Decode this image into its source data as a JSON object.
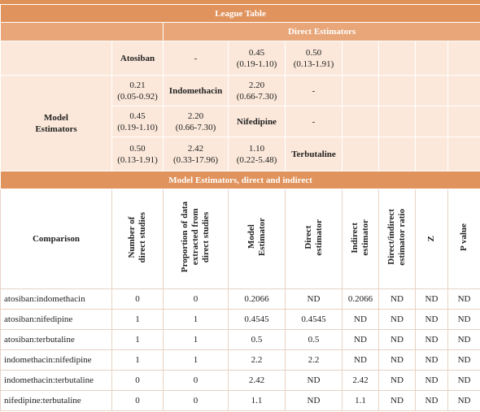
{
  "title": "League Table",
  "direct_header": "Direct Estimators",
  "model_label": [
    "Model",
    "Estimators"
  ],
  "league": [
    [
      null,
      [
        "Atosiban"
      ],
      [
        "-"
      ],
      [
        "0.45",
        "(0.19-1.10)"
      ],
      [
        "0.50",
        "(0.13-1.91)"
      ],
      null,
      null,
      null,
      null
    ],
    [
      null,
      [
        "0.21",
        "(0.05-0.92)"
      ],
      [
        "Indomethacin"
      ],
      [
        "2.20",
        "(0.66-7.30)"
      ],
      [
        "-"
      ],
      null,
      null,
      null,
      null
    ],
    [
      null,
      [
        "0.45",
        "(0.19-1.10)"
      ],
      [
        "2.20",
        "(0.66-7.30)"
      ],
      [
        "Nifedipine"
      ],
      [
        "-"
      ],
      null,
      null,
      null,
      null
    ],
    [
      null,
      [
        "0.50",
        "(0.13-1.91)"
      ],
      [
        "2.42",
        "(0.33-17.96)"
      ],
      [
        "1.10",
        "(0.22-5.48)"
      ],
      [
        "Terbutaline"
      ],
      null,
      null,
      null,
      null
    ]
  ],
  "section2_title": "Model Estimators, direct and indirect",
  "columns": [
    [
      "Comparison"
    ],
    [
      "Number of",
      "direct studies"
    ],
    [
      "Proportion of data",
      "extracted from",
      "direct studies"
    ],
    [
      "Model",
      "Estimator"
    ],
    [
      "Direct",
      "estimator"
    ],
    [
      "Indirect",
      "estimator"
    ],
    [
      "Direct/indirect",
      "estimator ratio"
    ],
    [
      "Z"
    ],
    [
      "P value"
    ]
  ],
  "rows": [
    [
      "atosiban:indomethacin",
      0,
      0,
      0.2066,
      "ND",
      0.2066,
      "ND",
      "ND",
      "ND"
    ],
    [
      "atosiban:nifedipine",
      1,
      1,
      0.4545,
      0.4545,
      "ND",
      "ND",
      "ND",
      "ND"
    ],
    [
      "atosiban:terbutaline",
      1,
      1,
      0.5,
      0.5,
      "ND",
      "ND",
      "ND",
      "ND"
    ],
    [
      "indomethacin:nifedipine",
      1,
      1,
      2.2,
      2.2,
      "ND",
      "ND",
      "ND",
      "ND"
    ],
    [
      "indomethacin:terbutaline",
      0,
      0,
      2.42,
      "ND",
      2.42,
      "ND",
      "ND",
      "ND"
    ],
    [
      "nifedipine:terbutaline",
      0,
      0,
      1.1,
      "ND",
      1.1,
      "ND",
      "ND",
      "ND"
    ]
  ]
}
